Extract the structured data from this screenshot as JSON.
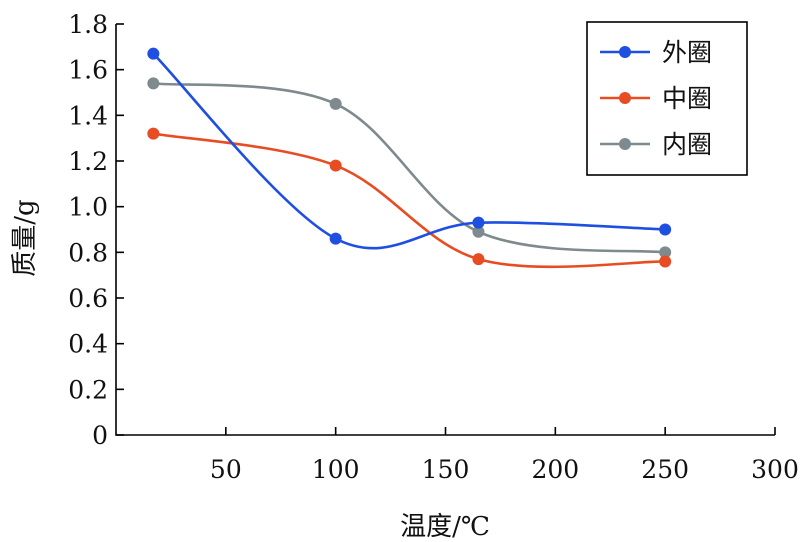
{
  "chart_data": {
    "type": "line",
    "title": "",
    "xlabel": "温度/℃",
    "ylabel": "质量/g",
    "xlim": [
      0,
      300
    ],
    "ylim": [
      0,
      1.8
    ],
    "x_ticks": [
      50,
      100,
      150,
      200,
      250,
      300
    ],
    "y_ticks": [
      0,
      0.2,
      0.4,
      0.6,
      0.8,
      1.0,
      1.2,
      1.4,
      1.6,
      1.8
    ],
    "x_tick_labels": [
      "50",
      "100",
      "150",
      "200",
      "250",
      "300"
    ],
    "y_tick_labels": [
      "0",
      "0.2",
      "0.4",
      "0.6",
      "0.8",
      "1.0",
      "1.2",
      "1.4",
      "1.6",
      "1.8"
    ],
    "grid": false,
    "legend_position": "top-right",
    "series": [
      {
        "name": "外圈",
        "color": "#1f4fe0",
        "marker": "circle",
        "x": [
          17,
          100,
          165,
          250
        ],
        "values": [
          1.67,
          0.86,
          0.93,
          0.9
        ]
      },
      {
        "name": "中圈",
        "color": "#e84c22",
        "marker": "circle",
        "x": [
          17,
          100,
          165,
          250
        ],
        "values": [
          1.32,
          1.18,
          0.77,
          0.76
        ]
      },
      {
        "name": "内圈",
        "color": "#7e8a8d",
        "marker": "circle",
        "x": [
          17,
          100,
          165,
          250
        ],
        "values": [
          1.54,
          1.45,
          0.89,
          0.8
        ]
      }
    ]
  }
}
